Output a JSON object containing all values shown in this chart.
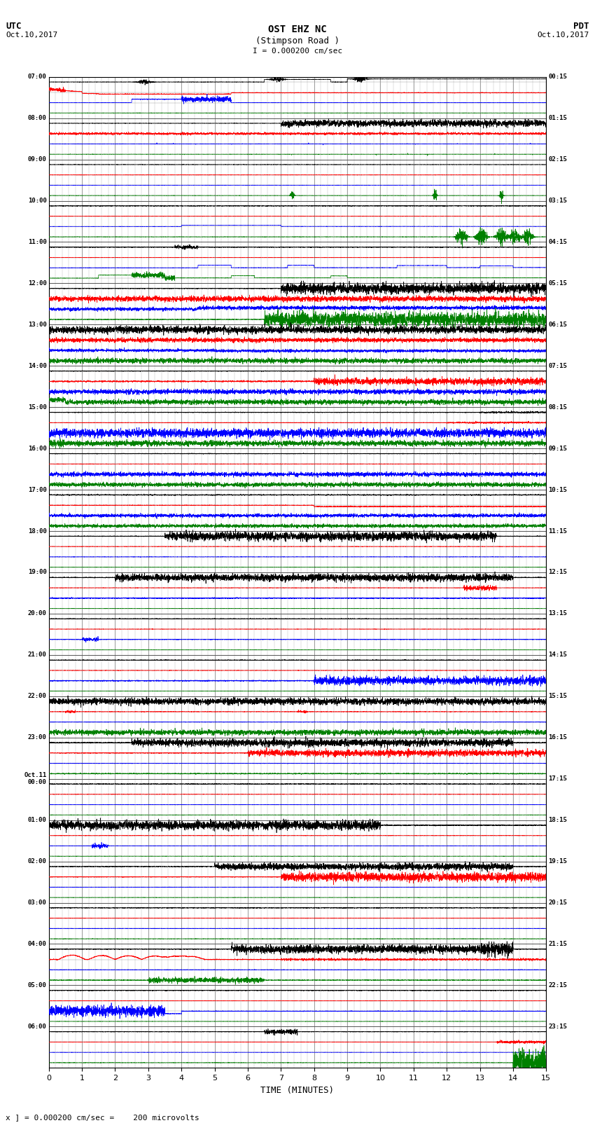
{
  "title_line1": "OST EHZ NC",
  "title_line2": "(Stimpson Road )",
  "title_line3": "I = 0.000200 cm/sec",
  "label_utc": "UTC",
  "label_pdt": "PDT",
  "date_left": "Oct.10,2017",
  "date_right": "Oct.10,2017",
  "xlabel": "TIME (MINUTES)",
  "footer": "x ] = 0.000200 cm/sec =    200 microvolts",
  "bg_color": "#ffffff",
  "xlim": [
    0,
    15
  ],
  "xticks": [
    0,
    1,
    2,
    3,
    4,
    5,
    6,
    7,
    8,
    9,
    10,
    11,
    12,
    13,
    14,
    15
  ],
  "utc_labels": [
    "07:00",
    "08:00",
    "09:00",
    "10:00",
    "11:00",
    "12:00",
    "13:00",
    "14:00",
    "15:00",
    "16:00",
    "17:00",
    "18:00",
    "19:00",
    "20:00",
    "21:00",
    "22:00",
    "23:00",
    "Oct.11\n00:00",
    "01:00",
    "02:00",
    "03:00",
    "04:00",
    "05:00",
    "06:00"
  ],
  "pdt_labels": [
    "00:15",
    "01:15",
    "02:15",
    "03:15",
    "04:15",
    "05:15",
    "06:15",
    "07:15",
    "08:15",
    "09:15",
    "10:15",
    "11:15",
    "12:15",
    "13:15",
    "14:15",
    "15:15",
    "16:15",
    "17:15",
    "18:15",
    "19:15",
    "20:15",
    "21:15",
    "22:15",
    "23:15"
  ],
  "colors": [
    "black",
    "red",
    "blue",
    "green"
  ],
  "seed": 42
}
